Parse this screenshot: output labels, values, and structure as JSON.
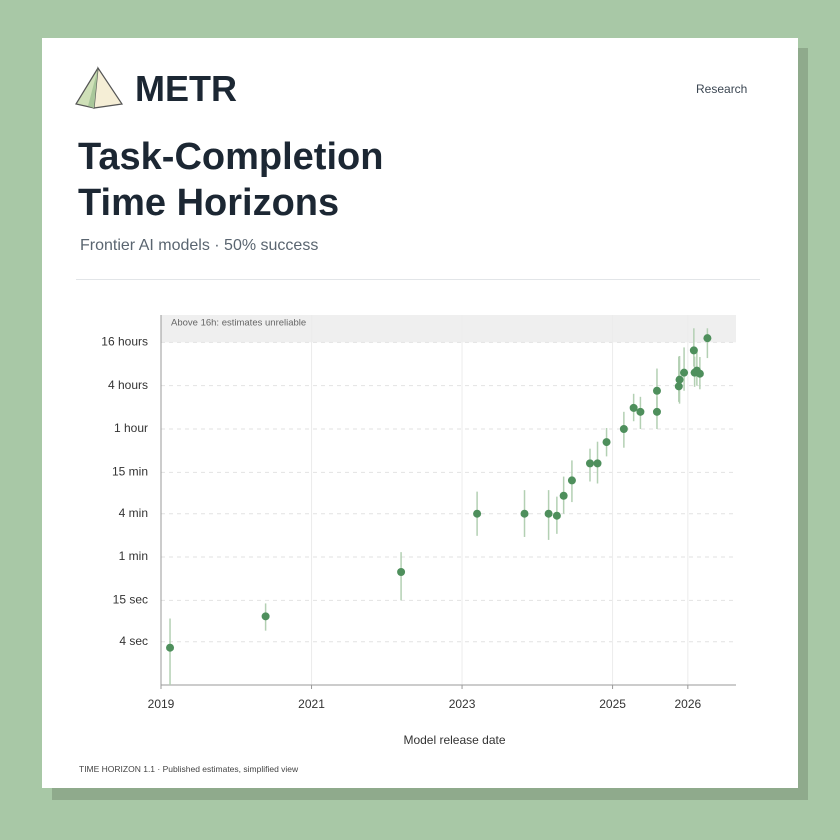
{
  "header": {
    "brand": "METR",
    "nav": "Research",
    "title": "Task-Completion Time Horizons",
    "subtitle": "Frontier AI models · 50% success"
  },
  "footer": "TIME HORIZON 1.1 · Published estimates, simplified view",
  "chart_data": {
    "type": "scatter",
    "xlabel": "Model release date",
    "annotation": {
      "text": "Above 16h: estimates unreliable",
      "from": 960
    },
    "log_y": true,
    "grid": true,
    "color": "#4e8f5c",
    "error_color": "#b3d0b3",
    "x": [
      2019.12,
      2020.39,
      2022.19,
      2023.2,
      2023.83,
      2024.15,
      2024.26,
      2024.35,
      2024.46,
      2024.7,
      2024.8,
      2024.92,
      2025.15,
      2025.28,
      2025.37,
      2025.59,
      2025.59,
      2025.88,
      2025.89,
      2025.95,
      2026.08,
      2026.09,
      2026.12,
      2026.16,
      2026.26
    ],
    "values": [
      0.055,
      0.15,
      0.62,
      4,
      4,
      4,
      3.75,
      7.1,
      11.6,
      20,
      20,
      39.5,
      60,
      118,
      104,
      104,
      204,
      235,
      291,
      364,
      742,
      364,
      389,
      352,
      1097
    ],
    "error_low": [
      0.0167,
      0.095,
      0.25,
      1.97,
      1.9,
      1.73,
      2.1,
      4,
      5.8,
      11.2,
      10.5,
      25,
      33,
      77,
      60,
      60,
      107,
      143,
      135,
      204,
      442,
      231,
      240,
      214,
      580
    ],
    "error_high": [
      0.14,
      0.227,
      1.17,
      8.1,
      8.5,
      8.5,
      6.9,
      13.1,
      22,
      32,
      40,
      62,
      104,
      185,
      168,
      168,
      415,
      608,
      620,
      816,
      1504,
      608,
      764,
      600,
      1504
    ],
    "xlim": [
      2019,
      2026.64
    ],
    "xticks": [
      2019,
      2021,
      2023,
      2025,
      2026
    ],
    "ylim": [
      0.0167,
      2300
    ],
    "yticks": [
      {
        "value": 0.0667,
        "label": "4 sec"
      },
      {
        "value": 0.25,
        "label": "15 sec"
      },
      {
        "value": 1,
        "label": "1 min"
      },
      {
        "value": 4,
        "label": "4 min"
      },
      {
        "value": 15,
        "label": "15 min"
      },
      {
        "value": 60,
        "label": "1 hour"
      },
      {
        "value": 240,
        "label": "4 hours"
      },
      {
        "value": 960,
        "label": "16 hours"
      }
    ]
  }
}
